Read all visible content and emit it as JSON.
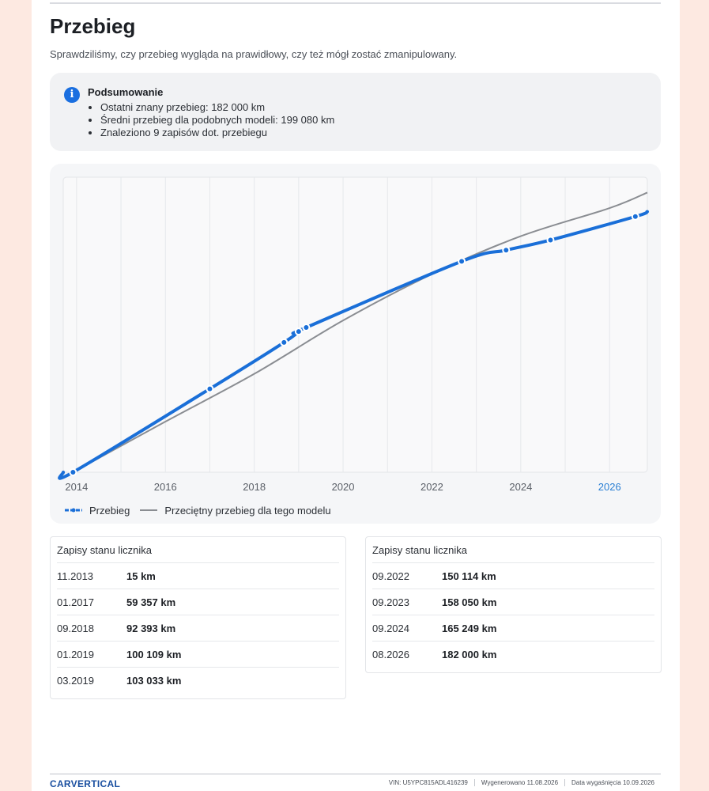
{
  "header": {
    "title": "Przebieg",
    "subtitle": "Sprawdziliśmy, czy przebieg wygląda na prawidłowy, czy też mógł zostać zmanipulowany."
  },
  "summary": {
    "title": "Podsumowanie",
    "items": [
      "Ostatni znany przebieg: 182 000 km",
      "Średni przebieg dla podobnych modeli: 199 080 km",
      "Znaleziono 9 zapisów dot. przebiegu"
    ]
  },
  "chart_data": {
    "type": "line",
    "x_ticks": [
      "2014",
      "2016",
      "2018",
      "2020",
      "2022",
      "2024",
      "2026"
    ],
    "highlight_tick": "2026",
    "xlim": [
      2013.7,
      2026.85
    ],
    "ylim": [
      0,
      210000
    ],
    "grid": true,
    "legend_position": "bottom-left",
    "series": [
      {
        "name": "Przebieg",
        "color": "#1a6fd8",
        "points": [
          {
            "x": 2013.92,
            "y": 15
          },
          {
            "x": 2017.0,
            "y": 59357
          },
          {
            "x": 2018.67,
            "y": 92393
          },
          {
            "x": 2019.0,
            "y": 100109
          },
          {
            "x": 2019.17,
            "y": 103033
          },
          {
            "x": 2022.67,
            "y": 150114
          },
          {
            "x": 2023.67,
            "y": 158050
          },
          {
            "x": 2024.67,
            "y": 165249
          },
          {
            "x": 2026.58,
            "y": 182000
          }
        ]
      },
      {
        "name": "Przeciętny przebieg dla tego modelu",
        "color": "#8a8d92",
        "points": [
          {
            "x": 2013.92,
            "y": 0
          },
          {
            "x": 2016.0,
            "y": 36000
          },
          {
            "x": 2018.0,
            "y": 70000
          },
          {
            "x": 2020.0,
            "y": 108000
          },
          {
            "x": 2022.0,
            "y": 141000
          },
          {
            "x": 2024.0,
            "y": 168000
          },
          {
            "x": 2026.0,
            "y": 188000
          },
          {
            "x": 2026.85,
            "y": 199080
          }
        ]
      }
    ]
  },
  "records_left": {
    "title": "Zapisy stanu licznika",
    "rows": [
      {
        "date": "11.2013",
        "value": "15 km"
      },
      {
        "date": "01.2017",
        "value": "59 357 km"
      },
      {
        "date": "09.2018",
        "value": "92 393 km"
      },
      {
        "date": "01.2019",
        "value": "100 109 km"
      },
      {
        "date": "03.2019",
        "value": "103 033 km"
      }
    ]
  },
  "records_right": {
    "title": "Zapisy stanu licznika",
    "rows": [
      {
        "date": "09.2022",
        "value": "150 114 km"
      },
      {
        "date": "09.2023",
        "value": "158 050 km"
      },
      {
        "date": "09.2024",
        "value": "165 249 km"
      },
      {
        "date": "08.2026",
        "value": "182 000 km"
      }
    ]
  },
  "footer": {
    "logo": "CARVERTICAL",
    "vin": "VIN: U5YPC815ADL416239",
    "generated": "Wygenerowano  11.08.2026",
    "expires": "Data wygaśnięcia  10.09.2026"
  }
}
